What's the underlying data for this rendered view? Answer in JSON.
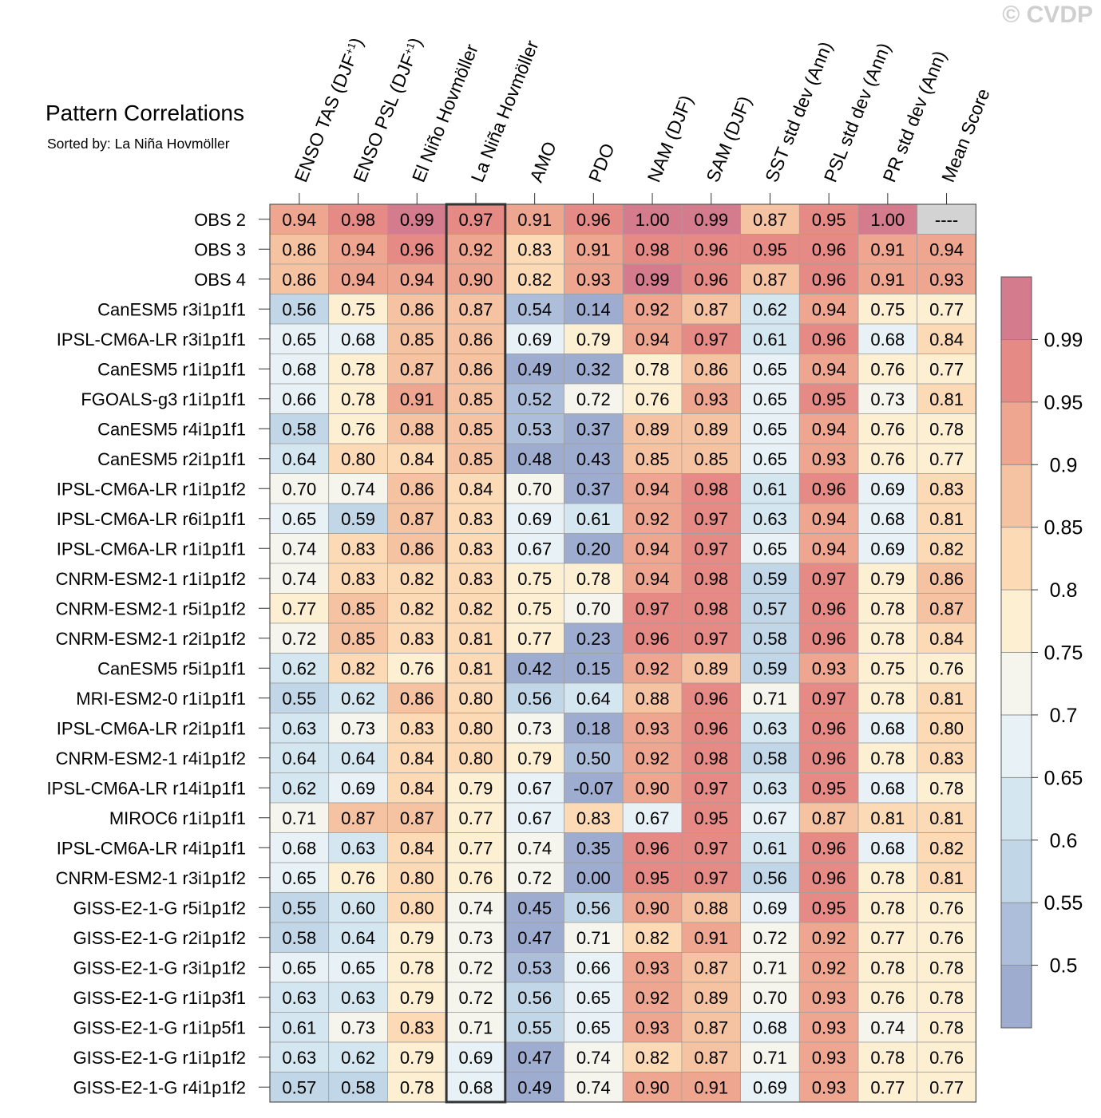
{
  "watermark": "© CVDP",
  "chart_data": {
    "type": "heatmap",
    "title": "Pattern Correlations",
    "subtitle": "Sorted by: La Niña Hovmöller",
    "columns": [
      "ENSO TAS (DJF+1)",
      "ENSO PSL (DJF+1)",
      "El Niño Hovmöller",
      "La Niña Hovmöller",
      "AMO",
      "PDO",
      "NAM (DJF)",
      "SAM (DJF)",
      "SST std dev (Ann)",
      "PSL std dev (Ann)",
      "PR std dev (Ann)",
      "Mean Score"
    ],
    "highlighted_column": "La Niña Hovmöller",
    "missing_label": "----",
    "rows": [
      {
        "name": "OBS 2",
        "values": [
          "0.94",
          "0.98",
          "0.99",
          "0.97",
          "0.91",
          "0.96",
          "1.00",
          "0.99",
          "0.87",
          "0.95",
          "1.00",
          null
        ]
      },
      {
        "name": "OBS 3",
        "values": [
          "0.86",
          "0.94",
          "0.96",
          "0.92",
          "0.83",
          "0.91",
          "0.98",
          "0.96",
          "0.95",
          "0.96",
          "0.91",
          "0.94"
        ]
      },
      {
        "name": "OBS 4",
        "values": [
          "0.86",
          "0.94",
          "0.94",
          "0.90",
          "0.82",
          "0.93",
          "0.99",
          "0.96",
          "0.87",
          "0.96",
          "0.91",
          "0.93"
        ]
      },
      {
        "name": "CanESM5 r3i1p1f1",
        "values": [
          "0.56",
          "0.75",
          "0.86",
          "0.87",
          "0.54",
          "0.14",
          "0.92",
          "0.87",
          "0.62",
          "0.94",
          "0.75",
          "0.77"
        ]
      },
      {
        "name": "IPSL-CM6A-LR r3i1p1f1",
        "values": [
          "0.65",
          "0.68",
          "0.85",
          "0.86",
          "0.69",
          "0.79",
          "0.94",
          "0.97",
          "0.61",
          "0.96",
          "0.68",
          "0.84"
        ]
      },
      {
        "name": "CanESM5 r1i1p1f1",
        "values": [
          "0.68",
          "0.78",
          "0.87",
          "0.86",
          "0.49",
          "0.32",
          "0.78",
          "0.86",
          "0.65",
          "0.94",
          "0.76",
          "0.77"
        ]
      },
      {
        "name": "FGOALS-g3 r1i1p1f1",
        "values": [
          "0.66",
          "0.78",
          "0.91",
          "0.85",
          "0.52",
          "0.72",
          "0.76",
          "0.93",
          "0.65",
          "0.95",
          "0.73",
          "0.81"
        ]
      },
      {
        "name": "CanESM5 r4i1p1f1",
        "values": [
          "0.58",
          "0.76",
          "0.88",
          "0.85",
          "0.53",
          "0.37",
          "0.89",
          "0.89",
          "0.65",
          "0.94",
          "0.76",
          "0.78"
        ]
      },
      {
        "name": "CanESM5 r2i1p1f1",
        "values": [
          "0.64",
          "0.80",
          "0.84",
          "0.85",
          "0.48",
          "0.43",
          "0.85",
          "0.85",
          "0.65",
          "0.93",
          "0.76",
          "0.77"
        ]
      },
      {
        "name": "IPSL-CM6A-LR r1i1p1f2",
        "values": [
          "0.70",
          "0.74",
          "0.86",
          "0.84",
          "0.70",
          "0.37",
          "0.94",
          "0.98",
          "0.61",
          "0.96",
          "0.69",
          "0.83"
        ]
      },
      {
        "name": "IPSL-CM6A-LR r6i1p1f1",
        "values": [
          "0.65",
          "0.59",
          "0.87",
          "0.83",
          "0.69",
          "0.61",
          "0.92",
          "0.97",
          "0.63",
          "0.94",
          "0.68",
          "0.81"
        ]
      },
      {
        "name": "IPSL-CM6A-LR r1i1p1f1",
        "values": [
          "0.74",
          "0.83",
          "0.86",
          "0.83",
          "0.67",
          "0.20",
          "0.94",
          "0.97",
          "0.65",
          "0.94",
          "0.69",
          "0.82"
        ]
      },
      {
        "name": "CNRM-ESM2-1 r1i1p1f2",
        "values": [
          "0.74",
          "0.83",
          "0.82",
          "0.83",
          "0.75",
          "0.78",
          "0.94",
          "0.98",
          "0.59",
          "0.97",
          "0.79",
          "0.86"
        ]
      },
      {
        "name": "CNRM-ESM2-1 r5i1p1f2",
        "values": [
          "0.77",
          "0.85",
          "0.82",
          "0.82",
          "0.75",
          "0.70",
          "0.97",
          "0.98",
          "0.57",
          "0.96",
          "0.78",
          "0.87"
        ]
      },
      {
        "name": "CNRM-ESM2-1 r2i1p1f2",
        "values": [
          "0.72",
          "0.85",
          "0.83",
          "0.81",
          "0.77",
          "0.23",
          "0.96",
          "0.97",
          "0.58",
          "0.96",
          "0.78",
          "0.84"
        ]
      },
      {
        "name": "CanESM5 r5i1p1f1",
        "values": [
          "0.62",
          "0.82",
          "0.76",
          "0.81",
          "0.42",
          "0.15",
          "0.92",
          "0.89",
          "0.59",
          "0.93",
          "0.75",
          "0.76"
        ]
      },
      {
        "name": "MRI-ESM2-0 r1i1p1f1",
        "values": [
          "0.55",
          "0.62",
          "0.86",
          "0.80",
          "0.56",
          "0.64",
          "0.88",
          "0.96",
          "0.71",
          "0.97",
          "0.78",
          "0.81"
        ]
      },
      {
        "name": "IPSL-CM6A-LR r2i1p1f1",
        "values": [
          "0.63",
          "0.73",
          "0.83",
          "0.80",
          "0.73",
          "0.18",
          "0.93",
          "0.96",
          "0.63",
          "0.96",
          "0.68",
          "0.80"
        ]
      },
      {
        "name": "CNRM-ESM2-1 r4i1p1f2",
        "values": [
          "0.64",
          "0.64",
          "0.84",
          "0.80",
          "0.79",
          "0.50",
          "0.92",
          "0.98",
          "0.58",
          "0.96",
          "0.78",
          "0.83"
        ]
      },
      {
        "name": "IPSL-CM6A-LR r14i1p1f1",
        "values": [
          "0.62",
          "0.69",
          "0.84",
          "0.79",
          "0.67",
          "-0.07",
          "0.90",
          "0.97",
          "0.63",
          "0.95",
          "0.68",
          "0.78"
        ]
      },
      {
        "name": "MIROC6 r1i1p1f1",
        "values": [
          "0.71",
          "0.87",
          "0.87",
          "0.77",
          "0.67",
          "0.83",
          "0.67",
          "0.95",
          "0.67",
          "0.87",
          "0.81",
          "0.81"
        ]
      },
      {
        "name": "IPSL-CM6A-LR r4i1p1f1",
        "values": [
          "0.68",
          "0.63",
          "0.84",
          "0.77",
          "0.74",
          "0.35",
          "0.96",
          "0.97",
          "0.61",
          "0.96",
          "0.68",
          "0.82"
        ]
      },
      {
        "name": "CNRM-ESM2-1 r3i1p1f2",
        "values": [
          "0.65",
          "0.76",
          "0.80",
          "0.76",
          "0.72",
          "0.00",
          "0.95",
          "0.97",
          "0.56",
          "0.96",
          "0.78",
          "0.81"
        ]
      },
      {
        "name": "GISS-E2-1-G r5i1p1f2",
        "values": [
          "0.55",
          "0.60",
          "0.80",
          "0.74",
          "0.45",
          "0.56",
          "0.90",
          "0.88",
          "0.69",
          "0.95",
          "0.78",
          "0.76"
        ]
      },
      {
        "name": "GISS-E2-1-G r2i1p1f2",
        "values": [
          "0.58",
          "0.64",
          "0.79",
          "0.73",
          "0.47",
          "0.71",
          "0.82",
          "0.91",
          "0.72",
          "0.92",
          "0.77",
          "0.76"
        ]
      },
      {
        "name": "GISS-E2-1-G r3i1p1f2",
        "values": [
          "0.65",
          "0.65",
          "0.78",
          "0.72",
          "0.53",
          "0.66",
          "0.93",
          "0.87",
          "0.71",
          "0.92",
          "0.78",
          "0.78"
        ]
      },
      {
        "name": "GISS-E2-1-G r1i1p3f1",
        "values": [
          "0.63",
          "0.63",
          "0.79",
          "0.72",
          "0.56",
          "0.65",
          "0.92",
          "0.89",
          "0.70",
          "0.93",
          "0.76",
          "0.78"
        ]
      },
      {
        "name": "GISS-E2-1-G r1i1p5f1",
        "values": [
          "0.61",
          "0.73",
          "0.83",
          "0.71",
          "0.55",
          "0.65",
          "0.93",
          "0.87",
          "0.68",
          "0.93",
          "0.74",
          "0.78"
        ]
      },
      {
        "name": "GISS-E2-1-G r1i1p1f2",
        "values": [
          "0.63",
          "0.62",
          "0.79",
          "0.69",
          "0.47",
          "0.74",
          "0.82",
          "0.87",
          "0.71",
          "0.93",
          "0.78",
          "0.76"
        ]
      },
      {
        "name": "GISS-E2-1-G r4i1p1f2",
        "values": [
          "0.57",
          "0.58",
          "0.78",
          "0.68",
          "0.49",
          "0.74",
          "0.90",
          "0.91",
          "0.69",
          "0.93",
          "0.77",
          "0.77"
        ]
      }
    ],
    "colorbar": {
      "levels": [
        0.5,
        0.55,
        0.6,
        0.65,
        0.7,
        0.75,
        0.8,
        0.85,
        0.9,
        0.95,
        0.99
      ],
      "labels": [
        "0.5",
        "0.55",
        "0.6",
        "0.65",
        "0.7",
        "0.75",
        "0.8",
        "0.85",
        "0.9",
        "0.95",
        "0.99"
      ],
      "colors": [
        "#9daccf",
        "#adbedb",
        "#c1d6e7",
        "#d4e7f0",
        "#e8f2f6",
        "#f5f5ee",
        "#fdefd1",
        "#fcdab5",
        "#f6c3a2",
        "#efa690",
        "#e68a86",
        "#d47b8e"
      ],
      "missing_color": "#d3d3d3"
    }
  }
}
